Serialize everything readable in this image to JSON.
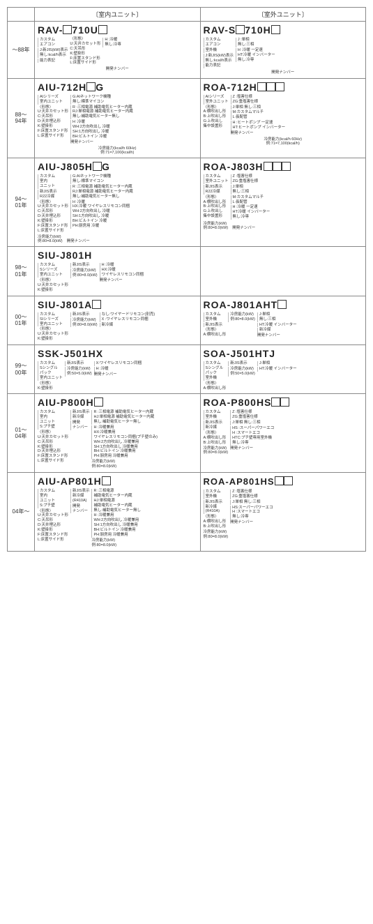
{
  "header": {
    "indoor": "〔室内ユニット〕",
    "outdoor": "〔室外ユニット〕"
  },
  "rows": [
    {
      "year": "～88年",
      "in": {
        "model": "RAV-□710U□",
        "left1": "カスタム",
        "left2": "エアコン",
        "left3": "J:新JIS(kW)表示",
        "left4": "無し:kcal/h表示",
        "left5": "能力表記",
        "mid_h": "〈形態〉",
        "mid1": "U:天井カセット形",
        "mid2": "C:天吊形",
        "mid3": "K:壁掛形",
        "mid4": "F:床置スタンド形",
        "mid5": "L:床置サイド形",
        "right1": "H :冷暖",
        "right2": "無し:冷専",
        "foot": "開発ナンバー"
      },
      "out": {
        "model": "RAV-S□710H□",
        "left1": "カスタム",
        "left2": "エアコン",
        "left3": "室外機",
        "left4": "J:新JIS(kW)表示",
        "left5": "無し:kcal/h表示",
        "left6": "能力表記",
        "right1": "J :単相",
        "right2": "無し:三相",
        "right3": "H :冷暖  一定速",
        "right4": "HT:冷暖  インバーター",
        "right5": "無し:冷専",
        "foot": "開発ナンバー"
      }
    },
    {
      "year": "88～\n94年",
      "in": {
        "model": "AIU-712H□G",
        "left1": "AIシリーズ",
        "left2": "室内ユニット",
        "mid_h": "〈形態〉",
        "mid1": "U:天井カセット形",
        "mid2": "C:天吊形",
        "mid3": "D:天井埋込形",
        "mid4": "K:壁掛形",
        "mid5": "F:床置スタンド形",
        "mid6": "L:床置サイド形",
        "right_h1": "G:AIネットワーク機種",
        "right_h2": "無し:標準マイコン",
        "r1": "R :三相電源  補助電気ヒーター内蔵",
        "r2": "RJ:単相電源  補助電気ヒーター内蔵",
        "r3": "無し:補助電気ヒーター無し",
        "r4": "H :冷暖",
        "r5": "WH:2方向吹出し  冷暖",
        "r6": "SH:1方向吹出し  冷暖",
        "r7": "BH:ビルトイン        冷暖",
        "foot1": "開発ナンバー",
        "foot2": "冷房能力(kcal/h 60Hz)",
        "foot3": "例:71=7,100(kcal/h)"
      },
      "out": {
        "model": "ROA-712H□□□",
        "left1": "AIシリーズ",
        "left2": "室外ユニット",
        "mid_h": "〈形態〉",
        "mid1": "A:横吹出し形",
        "mid2": "B:上吹出し形",
        "mid3": "G:上吹出し",
        "mid4": "  集中設置形",
        "right1": "Z :塩害仕様",
        "right2": "ZG:重塩害仕様",
        "right3": "J:単相  無し:三相",
        "right4": "M:カスタムマルチ",
        "right5": "L:長配管",
        "right6": "H :ヒートポンプ  一定速",
        "right7": "HT:ヒートポンプ  インバーター",
        "foot1": "開発ナンバー",
        "foot2": "冷房能力(kcal/h 60Hz)",
        "foot3": "例:71=7,100(kcal/h)"
      }
    },
    {
      "year": "94～\n01年",
      "in": {
        "model": "AIU-J805H□G",
        "left1": "カスタム",
        "left2": "室内",
        "left3": "ユニット",
        "left4": "新JIS表示",
        "left5": "R22冷媒",
        "mid_h": "〈形態〉",
        "mid1": "U:天井カセット形",
        "mid2": "C:天吊形",
        "mid3": "D:天井埋込形",
        "mid4": "K:壁掛形",
        "mid5": "F:床置スタンド形",
        "mid6": "L:床置サイド形",
        "right_h1": "G:AIネットワーク機種",
        "right_h2": "無し:標準マイコン",
        "r1": "R :三相電源  補助電気ヒーター内蔵",
        "r2": "RJ:単相電源  補助電気ヒーター内蔵",
        "r3": "無し:補助電気ヒーター無し",
        "r4": "H :冷暖",
        "r5": "HX:冷暖  ワイヤレスリモコン同梱",
        "r6": "WH:2方向吹出し  冷暖",
        "r7": "SH:1方向吹出し  冷暖",
        "r8": "BH:ビルトイン        冷暖",
        "r9": "PH:厨房用          冷暖",
        "foot1": "冷房能力(kW)",
        "foot2": "例:80=8.0(kW)",
        "foot3": "開発ナンバー"
      },
      "out": {
        "model": "ROA-J803H□□□",
        "left1": "カスタム",
        "left2": "室外ユニット",
        "left3": "新JIS表示",
        "left4": "R22冷媒",
        "mid_h": "〈形態〉",
        "mid1": "A:横吹出し形",
        "mid2": "B:上吹出し形",
        "mid3": "G:上吹出し",
        "mid4": "  集中設置形",
        "right1": "Z :塩害仕様",
        "right2": "ZG:重塩害仕様",
        "right3": "J:単相",
        "right4": "無し:三相",
        "right5": "M:カスタムマルチ",
        "right6": "L:長配管",
        "right7": "H :冷暖  一定速",
        "right8": "HT:冷暖  インバーター",
        "right9": "無し:冷専",
        "foot1": "冷房能力(kW)",
        "foot2": "例:80=8.0(kW)",
        "foot3": "開発ナンバー"
      }
    },
    {
      "year": "98～\n01年",
      "in": {
        "model": "SIU-J801H",
        "left1": "カスタム",
        "left2": "Sシリーズ",
        "left3": "室内ユニット",
        "left4": "新JIS表示",
        "mid_h": "〈形態〉",
        "mid1": "U:天井カセット形",
        "mid2": "K:壁掛形",
        "right1": "H :冷暖",
        "right2": "HX:冷暖",
        "right3": "ワイヤレスリモコン同梱",
        "foot1": "開発ナンバー",
        "foot2": "冷房能力(kW)",
        "foot3": "例:80=8.0(kW)"
      }
    },
    {
      "year": "00～\n01年",
      "in": {
        "model": "SIU-J801A□",
        "left1": "カスタム",
        "left2": "SIシリーズ",
        "left3": "室内ユニット",
        "left4": "新JIS表示",
        "mid_h": "〈形態〉",
        "mid1": "U:天井カセット形",
        "mid2": "K:壁掛形",
        "right1": "なし:ワイヤードリモコン(別売)",
        "right2": "X  :ワイヤレスリモコン同梱",
        "right3": "新冷媒",
        "foot1": "冷房能力(kW)",
        "foot2": "例:80=8.0(kW)"
      },
      "out": {
        "model": "ROA-J801AHT□",
        "left1": "カスタム",
        "left2": "室外機",
        "left3": "新JIS表示",
        "mid_h": "〈形態〉",
        "mid1": "A:横吹出し形",
        "right1": "J:単相",
        "right2": "無し:三相",
        "right3": "HT:冷暖  インバーター",
        "right4": "新冷媒",
        "foot1": "冷房能力(kW)",
        "foot2": "例:80=8.0(kW)",
        "foot3": "開発ナンバー"
      }
    },
    {
      "year": "99～\n00年",
      "in": {
        "model": "SSK-J501HX",
        "left1": "カスタム",
        "left2": "Sシングル",
        "left3": "パック",
        "left4": "室内ユニット",
        "left5": "新JIS表示",
        "mid_h": "〈形態〉",
        "mid1": "K:壁掛形",
        "right1": "X:ワイヤレスリモコン同梱",
        "right2": "H :冷暖",
        "foot1": "開発ナンバー",
        "foot2": "冷房能力(kW)",
        "foot3": "例:50=5.0(kW)"
      },
      "out": {
        "model": "SOA-J501HTJ",
        "left1": "カスタム",
        "left2": "Sシングル",
        "left3": "パック",
        "left4": "室外機",
        "left5": "新JIS表示",
        "mid_h": "〈形態〉",
        "mid1": "A:横吹出し形",
        "right1": "J:単相",
        "right2": "HT:冷暖  インバーター",
        "foot1": "冷房能力(kW)",
        "foot2": "例:50=5.0(kW)"
      }
    },
    {
      "year": "01～\n04年",
      "in": {
        "model": "AIU-P800H□",
        "left1": "カスタム",
        "left2": "室内",
        "left3": "ユニット",
        "left4": "S:プチ壁",
        "left5": "新JIS表示",
        "left6": "新冷媒",
        "left7": "開発",
        "left8": "ナンバー",
        "mid_h": "〈形態〉",
        "mid1": "U:天井カセット形",
        "mid2": "C:天吊形",
        "mid3": "K:壁掛形",
        "mid4": "D:天井埋込形",
        "mid5": "F:床置スタンド形",
        "mid6": "L:床置サイド形",
        "r1": "R :三相電源  補助電気ヒーター内蔵",
        "r2": "HJ:単相電源  補助電気ヒーター内蔵",
        "r3": "無し:補助電気ヒーター無し",
        "r4": "H :冷暖兼用",
        "r5": "HX:冷暖兼用",
        "r6": "ワイヤレスリモコン同梱(プチ壁のみ)",
        "r7": "WH:2方向吹出し  冷暖兼用",
        "r8": "SH:1方向吹出し  冷暖兼用",
        "r9": "BH:ビルトイン        冷暖兼用",
        "r10": "PH:厨房用          冷暖兼用",
        "foot1": "冷房能力(kW)",
        "foot2": "例:80=8.0(kW)"
      },
      "out": {
        "model": "ROA-P800HS□□",
        "left1": "カスタム",
        "left2": "室外機",
        "left3": "新JIS表示",
        "left4": "新冷媒",
        "mid_h": "〈形態〉",
        "mid1": "A:横吹出し形",
        "mid2": "B:上吹出し形",
        "right1": "Z :塩害仕様",
        "right2": "ZG:重塩害仕様",
        "right3": "J:単相  無し:三相",
        "right4": "HS :スーパーパワーエコ",
        "right5": "H   :スマートエコ",
        "right6": "HTC:プチ壁専用室外機",
        "right7": "無し:冷専",
        "foot1": "冷房能力(kW)",
        "foot2": "例:80=8.0(kW)",
        "foot3": "開発ナンバー"
      }
    },
    {
      "year": "04年～",
      "in": {
        "model": "AIU-AP801H□",
        "left1": "カスタム",
        "left2": "室内",
        "left3": "ユニット",
        "left4": "S:プチ壁",
        "left5": "新JIS表示",
        "left6": "新冷媒",
        "left7": "(R410A)",
        "left8": "開発",
        "left9": "ナンバー",
        "mid_h": "〈形態〉",
        "mid1": "U:天井カセット形",
        "mid2": "C:天吊形",
        "mid3": "D:天井埋込形",
        "mid4": "K:壁掛形",
        "mid5": "F:床置スタンド形",
        "mid6": "L:床置サイド形",
        "r1": "R :三相電源",
        "r2": "  補助電気ヒーター内蔵",
        "r3": "HJ:単相電源",
        "r4": "  補助電気ヒーター内蔵",
        "r5": "無し:補助電気ヒーター無し",
        "r6": "H :冷暖兼用",
        "r7": "WH:2方向吹出し 冷暖兼用",
        "r8": "SH:1方向吹出し 冷暖兼用",
        "r9": "BH:ビルトイン     冷暖兼用",
        "r10": "PH:厨房用       冷暖兼用",
        "foot1": "冷房能力(kW)",
        "foot2": "例:80=8.0(kW)"
      },
      "out": {
        "model": "ROA-AP801HS□□",
        "left1": "カスタム",
        "left2": "室外機",
        "left3": "新JIS表示",
        "left4": "新冷媒",
        "left5": "(R410A)",
        "mid_h": "〈形態〉",
        "mid1": "A:横吹出し形",
        "mid2": "B:上吹出し形",
        "right1": "Z :塩害仕様",
        "right2": "ZG:重塩害仕様",
        "right3": "J:単相  無し:三相",
        "right4": "HS:スーパーパワーエコ",
        "right5": "H :スマートエコ",
        "right6": "無し:冷専",
        "foot1": "冷房能力(kW)",
        "foot2": "例:80=8.0(kW)",
        "foot3": "開発ナンバー"
      }
    }
  ]
}
